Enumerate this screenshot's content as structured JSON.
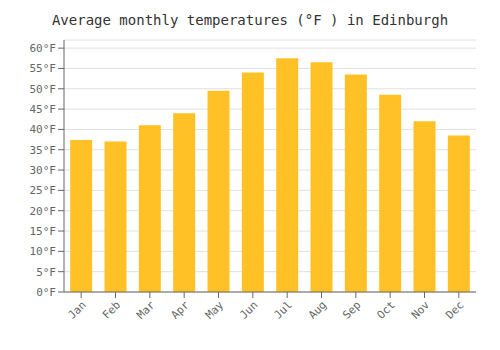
{
  "chart_data": {
    "type": "bar",
    "title": "Average monthly temperatures (°F ) in Edinburgh",
    "categories": [
      "Jan",
      "Feb",
      "Mar",
      "Apr",
      "May",
      "Jun",
      "Jul",
      "Aug",
      "Sep",
      "Oct",
      "Nov",
      "Dec"
    ],
    "values": [
      37.4,
      37.0,
      41.0,
      44.0,
      49.5,
      54.0,
      57.5,
      56.5,
      53.5,
      48.5,
      42.0,
      38.5
    ],
    "color": "#FFC125",
    "ylim": [
      0,
      62
    ],
    "yticks": [
      {
        "value": 0,
        "label": "0°F"
      },
      {
        "value": 5,
        "label": "5°F"
      },
      {
        "value": 10,
        "label": "10°F"
      },
      {
        "value": 15,
        "label": "15°F"
      },
      {
        "value": 20,
        "label": "20°F"
      },
      {
        "value": 25,
        "label": "25°F"
      },
      {
        "value": 30,
        "label": "30°F"
      },
      {
        "value": 35,
        "label": "35°F"
      },
      {
        "value": 40,
        "label": "40°F"
      },
      {
        "value": 45,
        "label": "45°F"
      },
      {
        "value": 50,
        "label": "50°F"
      },
      {
        "value": 55,
        "label": "55°F"
      },
      {
        "value": 60,
        "label": "60°F"
      }
    ],
    "grid": true
  }
}
